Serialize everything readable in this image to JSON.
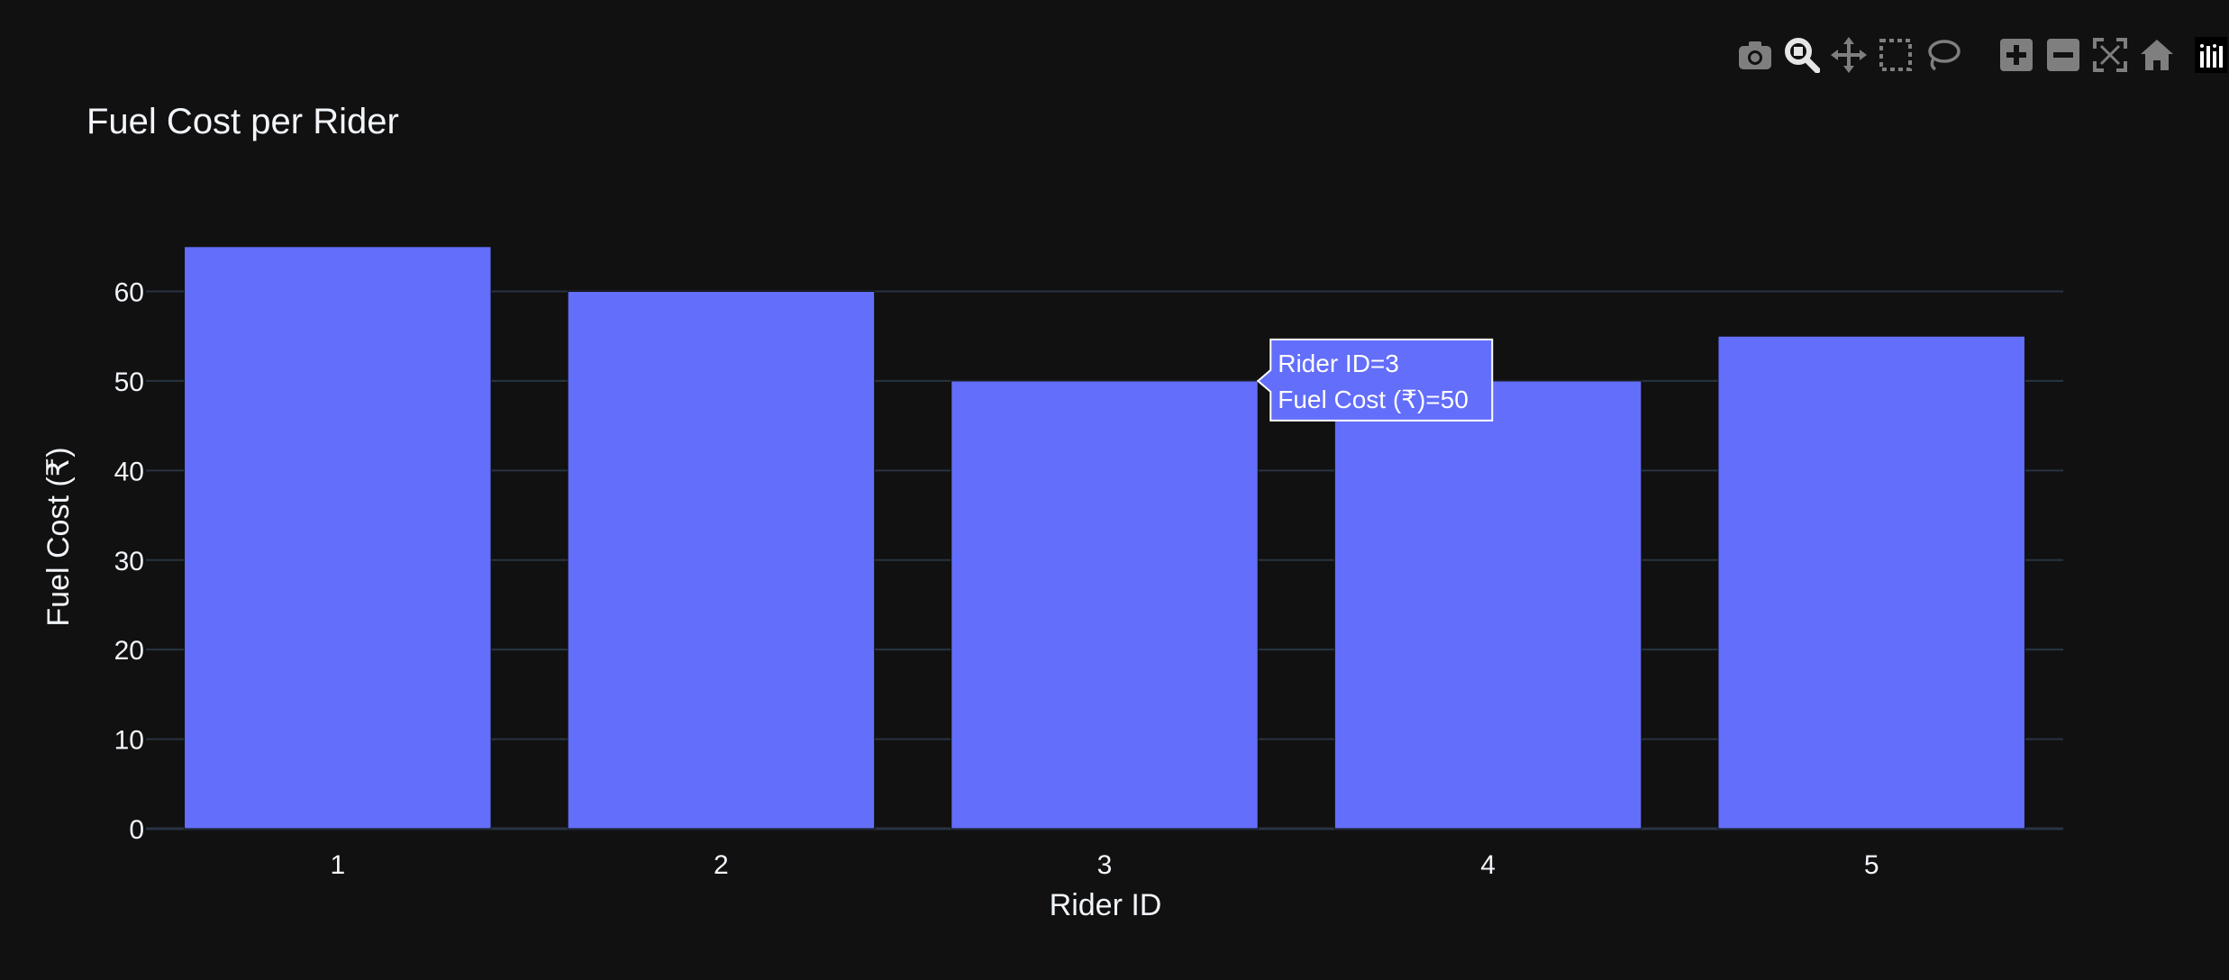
{
  "chart_data": {
    "type": "bar",
    "title": "Fuel Cost per Rider",
    "xlabel": "Rider ID",
    "ylabel": "Fuel Cost (₹)",
    "categories": [
      "1",
      "2",
      "3",
      "4",
      "5"
    ],
    "values": [
      65,
      60,
      50,
      50,
      55
    ],
    "ylim": [
      0,
      68.4
    ],
    "yticks": [
      0,
      10,
      20,
      30,
      40,
      50,
      60
    ],
    "grid": true,
    "bar_color": "#636efa",
    "background": "#111111",
    "grid_color": "#283442",
    "text_color": "#f2f5fa",
    "hover": {
      "category": "3",
      "line1": "Rider ID=3",
      "line2": "Fuel Cost (₹)=50"
    }
  },
  "modebar": {
    "buttons": [
      "camera-icon",
      "zoom-icon",
      "pan-icon",
      "box-select-icon",
      "lasso-icon",
      "zoom-in-icon",
      "zoom-out-icon",
      "autoscale-icon",
      "reset-axes-icon",
      "plotly-logo-icon"
    ]
  }
}
